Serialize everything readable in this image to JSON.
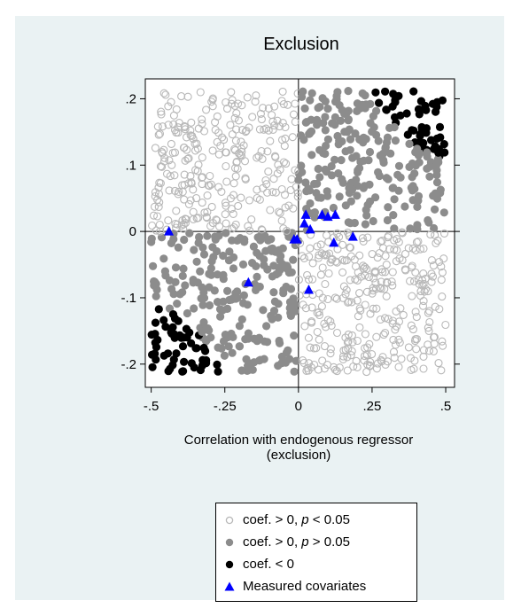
{
  "chart_data": {
    "type": "scatter",
    "title": "Exclusion",
    "xlabel_line1": "Correlation with endogenous regressor",
    "xlabel_line2": "(exclusion)",
    "ylabel": "",
    "xlim": [
      -0.52,
      0.53
    ],
    "ylim": [
      -0.235,
      0.23
    ],
    "x_ticks": [
      -0.5,
      -0.25,
      0,
      0.25,
      0.5
    ],
    "x_tick_labels": [
      "-.5",
      "-.25",
      "0",
      ".25",
      ".5"
    ],
    "y_ticks": [
      -0.2,
      -0.1,
      0,
      0.1,
      0.2
    ],
    "y_tick_labels": [
      "-.2",
      "-.1",
      "0",
      ".1",
      ".2"
    ],
    "reference_lines": {
      "x": 0,
      "y": 0
    },
    "grid": false,
    "legend_position": "bottom",
    "colors": {
      "positive_significant": "#b8b8b8",
      "positive_insignificant": "#8c8c8c",
      "negative": "#000000",
      "measured": "#0000ff"
    },
    "series": [
      {
        "name": "coef. > 0, p < 0.05",
        "marker": "hollow-circle",
        "values": "simulated: |x|~U(-0.5,0.5), y~U(-0.21,0.21) outside the same-sign zone"
      },
      {
        "name": "coef. > 0, p > 0.05",
        "marker": "filled-circle",
        "values": "simulated: same-sign quadrants, moderate |x·y|"
      },
      {
        "name": "coef. < 0",
        "marker": "filled-circle",
        "values": "simulated: same-sign quadrant corners, large |x·y|"
      },
      {
        "name": "Measured covariates",
        "marker": "triangle",
        "points": [
          [
            -0.44,
            0.0
          ],
          [
            -0.17,
            -0.077
          ],
          [
            -0.015,
            -0.012
          ],
          [
            -0.005,
            -0.012
          ],
          [
            0.02,
            0.012
          ],
          [
            0.025,
            0.025
          ],
          [
            0.04,
            0.003
          ],
          [
            0.08,
            0.025
          ],
          [
            0.1,
            0.022
          ],
          [
            0.125,
            0.025
          ],
          [
            0.12,
            -0.017
          ],
          [
            0.185,
            -0.008
          ],
          [
            0.035,
            -0.088
          ]
        ]
      }
    ]
  },
  "legend": {
    "items": [
      {
        "pre": "coef. > 0, ",
        "p": "p",
        "post": " < 0.05"
      },
      {
        "pre": "coef. > 0, ",
        "p": "p",
        "post": " > 0.05"
      },
      {
        "pre": "coef. < 0",
        "p": "",
        "post": ""
      },
      {
        "pre": "Measured covariates",
        "p": "",
        "post": ""
      }
    ]
  }
}
